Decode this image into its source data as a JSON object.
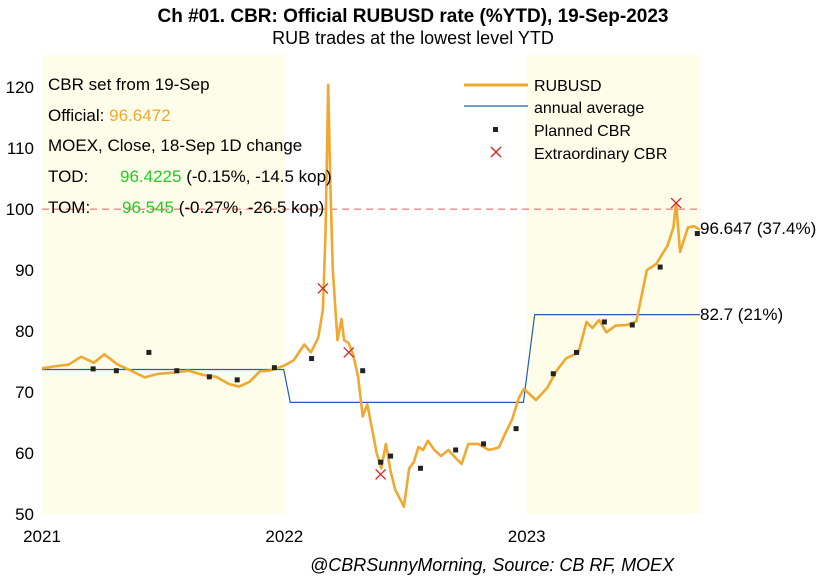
{
  "colors": {
    "rub": "#f0a830",
    "avg": "#1f5fb0",
    "band": "#fdfde9",
    "ref_line": "#e06060",
    "green": "#22cc22",
    "marker_planned": "#222222",
    "marker_extra": "#dd2222"
  },
  "chart_data": {
    "type": "line",
    "title": "Ch #01. CBR: Official RUBUSD rate (%YTD), 19-Sep-2023",
    "subtitle": "RUB trades at the lowest level YTD",
    "x_ticks": [
      "2021",
      "2022",
      "2023"
    ],
    "y_ticks": [
      50,
      60,
      70,
      80,
      90,
      100,
      110,
      120
    ],
    "ylim": [
      50,
      122
    ],
    "xlim": [
      "2021-01-01",
      "2023-09-19"
    ],
    "grid": false,
    "legend_position": "top-right",
    "reference_line": 100,
    "series": [
      {
        "name": "RUBUSD",
        "x": [
          "2021-01-01",
          "2021-01-20",
          "2021-02-10",
          "2021-03-01",
          "2021-03-20",
          "2021-04-05",
          "2021-04-25",
          "2021-05-15",
          "2021-06-05",
          "2021-06-25",
          "2021-07-20",
          "2021-08-10",
          "2021-09-01",
          "2021-09-20",
          "2021-10-10",
          "2021-10-25",
          "2021-11-10",
          "2021-11-25",
          "2021-12-10",
          "2021-12-31",
          "2022-01-15",
          "2022-01-31",
          "2022-02-10",
          "2022-02-21",
          "2022-02-28",
          "2022-03-04",
          "2022-03-08",
          "2022-03-11",
          "2022-03-15",
          "2022-03-22",
          "2022-03-28",
          "2022-04-01",
          "2022-04-08",
          "2022-04-15",
          "2022-04-22",
          "2022-04-29",
          "2022-05-06",
          "2022-05-13",
          "2022-05-20",
          "2022-05-27",
          "2022-06-03",
          "2022-06-10",
          "2022-06-17",
          "2022-06-24",
          "2022-06-30",
          "2022-07-08",
          "2022-07-15",
          "2022-07-22",
          "2022-07-29",
          "2022-08-05",
          "2022-08-15",
          "2022-08-25",
          "2022-09-05",
          "2022-09-15",
          "2022-09-25",
          "2022-10-05",
          "2022-10-20",
          "2022-11-05",
          "2022-11-20",
          "2022-12-01",
          "2022-12-10",
          "2022-12-20",
          "2022-12-28",
          "2023-01-15",
          "2023-02-01",
          "2023-02-15",
          "2023-03-01",
          "2023-03-20",
          "2023-04-01",
          "2023-04-10",
          "2023-04-20",
          "2023-05-01",
          "2023-05-15",
          "2023-06-01",
          "2023-06-15",
          "2023-07-01",
          "2023-07-15",
          "2023-08-01",
          "2023-08-10",
          "2023-08-14",
          "2023-08-20",
          "2023-09-01",
          "2023-09-10",
          "2023-09-19"
        ],
        "values": [
          73.9,
          74.2,
          74.5,
          75.8,
          74.8,
          76.2,
          74.5,
          73.5,
          72.4,
          73.0,
          73.2,
          73.5,
          72.8,
          72.5,
          71.3,
          70.9,
          71.7,
          73.4,
          73.5,
          74.3,
          75.2,
          77.8,
          76.5,
          78.9,
          83.5,
          96.0,
          120.4,
          105.0,
          90.0,
          78.5,
          82.0,
          78.5,
          78.0,
          76.0,
          72.5,
          66.0,
          68.0,
          64.0,
          60.0,
          57.5,
          61.5,
          57.0,
          54.0,
          52.5,
          51.2,
          57.5,
          58.5,
          61.0,
          60.5,
          62.0,
          60.5,
          59.5,
          60.5,
          59.3,
          58.2,
          61.5,
          61.5,
          60.5,
          60.9,
          63.5,
          65.5,
          69.0,
          70.5,
          68.7,
          70.7,
          73.5,
          75.5,
          76.5,
          81.5,
          80.5,
          81.8,
          79.8,
          80.9,
          81.0,
          81.6,
          90.0,
          91.0,
          94.0,
          97.0,
          101.0,
          93.0,
          97.0,
          97.2,
          96.65
        ]
      },
      {
        "name": "annual average",
        "x": [
          "2021-01-01",
          "2021-12-31",
          "2022-01-10",
          "2022-12-27",
          "2023-01-13",
          "2023-09-19"
        ],
        "values": [
          73.7,
          73.7,
          68.3,
          68.3,
          82.7,
          82.7
        ]
      },
      {
        "name": "Planned CBR",
        "type": "scatter",
        "x": [
          "2021-03-19",
          "2021-04-23",
          "2021-06-11",
          "2021-07-23",
          "2021-09-10",
          "2021-10-22",
          "2021-12-17",
          "2022-02-11",
          "2022-04-29",
          "2022-05-26",
          "2022-06-10",
          "2022-07-25",
          "2022-09-16",
          "2022-10-28",
          "2022-12-16",
          "2023-02-10",
          "2023-03-17",
          "2023-04-28",
          "2023-06-09",
          "2023-07-21",
          "2023-09-15"
        ],
        "values": [
          73.8,
          73.5,
          76.5,
          73.5,
          72.5,
          72.0,
          74.0,
          75.5,
          73.5,
          58.5,
          59.5,
          57.5,
          60.5,
          61.5,
          64.0,
          73.0,
          76.5,
          81.5,
          81.0,
          90.5,
          96.0
        ]
      },
      {
        "name": "Extraordinary CBR",
        "type": "scatter",
        "x": [
          "2022-02-28",
          "2022-04-08",
          "2022-05-26",
          "2023-08-14"
        ],
        "values": [
          87.0,
          76.5,
          56.5,
          101.0
        ]
      }
    ],
    "end_labels": [
      {
        "series": "RUBUSD",
        "value": 96.647,
        "text": "96.647 (37.4%)"
      },
      {
        "series": "annual average",
        "value": 82.7,
        "text": "82.7 (21%)"
      }
    ]
  },
  "annotation": {
    "line1": "CBR set from 19-Sep",
    "official_label": "Official:",
    "official_value": "96.6472",
    "moex_label": "MOEX, Close, 18-Sep 1D change",
    "tod_label": "TOD:",
    "tod_value": "96.4225",
    "tod_change": "(-0.15%, -14.5 kop)",
    "tom_label": "TOM:",
    "tom_value": "96.545",
    "tom_change": "(-0.27%, -26.5 kop)"
  },
  "source": "@CBRSunnyMorning, Source: CB RF, MOEX"
}
